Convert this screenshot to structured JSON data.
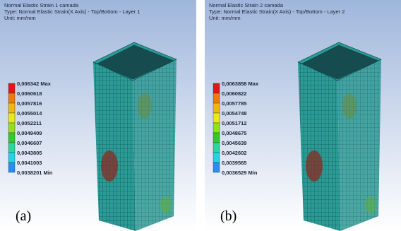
{
  "panels": [
    {
      "title_lines": [
        "Normal Elastic Strain 1 camada",
        "Type: Normal Elastic Strain(X Axis) - Top/Bottom - Layer 1",
        "Unit: mm/mm"
      ],
      "legend": [
        "0,006342 Max",
        "0,0060618",
        "0,0057816",
        "0,0055014",
        "0,0052211",
        "0,0049409",
        "0,0046607",
        "0,0043805",
        "0,0041003",
        "0,0038201 Min"
      ],
      "label": "(a)"
    },
    {
      "title_lines": [
        "Normal Elastic Strain 2 camada",
        "Type: Normal Elastic Strain(X Axis) - Top/Bottom - Layer 2",
        "Unit: mm/mm"
      ],
      "legend": [
        "0,0063858 Max",
        "0,0060822",
        "0,0057785",
        "0,0054748",
        "0,0051712",
        "0,0048675",
        "0,0045639",
        "0,0042602",
        "0,0039565",
        "0,0036529 Min"
      ],
      "label": "(b)"
    }
  ]
}
